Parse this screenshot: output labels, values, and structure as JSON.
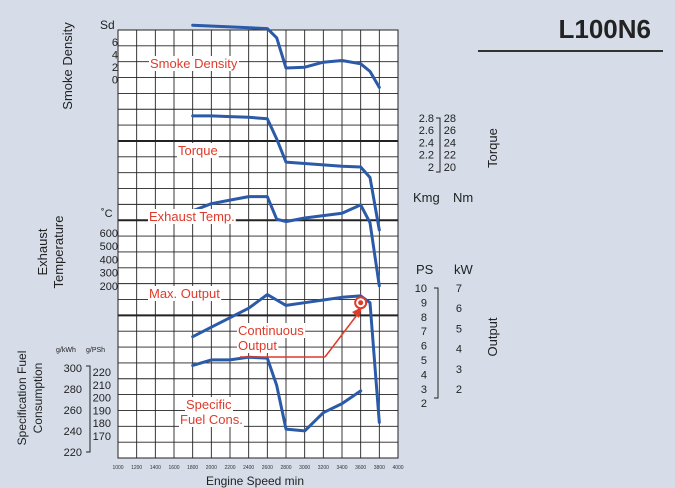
{
  "model": "L100N6",
  "xlabel": "Engine Speed min",
  "x_ticks": [
    1000,
    1200,
    1400,
    1600,
    1800,
    2000,
    2200,
    2400,
    2600,
    2800,
    3000,
    3200,
    3400,
    3600,
    3800,
    4000
  ],
  "left_axes": [
    {
      "label": "Smoke Density",
      "unit": "Sd",
      "ticks": [
        "6",
        "4",
        "2",
        "0"
      ]
    },
    {
      "label": "Exhaust Temperature",
      "unit": "˚C",
      "ticks": [
        "600",
        "500",
        "400",
        "300",
        "200"
      ]
    },
    {
      "label": "Specification Fuel Consumption",
      "unit_a": "g/kWh",
      "unit_b": "g/PSh",
      "ticks_a": [
        "300",
        "280",
        "260",
        "240",
        "220"
      ],
      "ticks_b": [
        "220",
        "210",
        "200",
        "190",
        "180",
        "170"
      ]
    }
  ],
  "right_axes": [
    {
      "label": "Torque",
      "unit_a": "Kmg",
      "unit_b": "Nm",
      "ticks_a": [
        "2.8",
        "2.6",
        "2.4",
        "2.2",
        "2"
      ],
      "ticks_b": [
        "28",
        "26",
        "24",
        "22",
        "20"
      ]
    },
    {
      "label": "Output",
      "unit_a": "PS",
      "unit_b": "kW",
      "ticks_a": [
        "10",
        "9",
        "8",
        "7",
        "6",
        "5",
        "4",
        "3",
        "2"
      ],
      "ticks_b": [
        "7",
        "6",
        "5",
        "4",
        "3",
        "2"
      ]
    }
  ],
  "curve_labels": {
    "smoke": "Smoke Density",
    "torque": "Torque",
    "exhaust": "Exhaust Temp.",
    "output": "Max. Output",
    "continuous": "Continuous Output",
    "fuel": "Specific Fuel Cons."
  },
  "colors": {
    "curve": "#2a5aa8",
    "label": "#e03a2a",
    "grid": "#222222",
    "background": "#d6dde9"
  },
  "chart_data": {
    "type": "line",
    "title": "L100N6",
    "xlabel": "Engine Speed min",
    "xlim": [
      1000,
      4000
    ],
    "grid": true,
    "series": [
      {
        "name": "Smoke Density",
        "unit": "Sd",
        "x": [
          1800,
          2200,
          2600,
          2700,
          2800,
          3000,
          3200,
          3400,
          3600,
          3700,
          3800
        ],
        "y": [
          7.0,
          6.8,
          6.6,
          5.5,
          1.9,
          2.0,
          2.6,
          2.8,
          2.4,
          1.5,
          -0.4
        ]
      },
      {
        "name": "Torque",
        "unit": "Nm",
        "x": [
          1800,
          2000,
          2200,
          2400,
          2600,
          2700,
          2800,
          3000,
          3200,
          3400,
          3600,
          3700,
          3800
        ],
        "y": [
          28.3,
          28.3,
          28.2,
          28.1,
          27.9,
          25.0,
          21.7,
          21.5,
          21.3,
          21.1,
          21.0,
          19.5,
          12.0
        ]
      },
      {
        "name": "Exhaust Temp.",
        "unit": "˚C",
        "x": [
          1800,
          2000,
          2200,
          2400,
          2600,
          2700,
          2800,
          3000,
          3200,
          3400,
          3600,
          3700,
          3800
        ],
        "y": [
          520,
          550,
          565,
          580,
          580,
          485,
          475,
          490,
          500,
          510,
          545,
          470,
          205
        ]
      },
      {
        "name": "Max. Output",
        "unit": "PS",
        "x": [
          1800,
          2000,
          2200,
          2400,
          2600,
          2700,
          2800,
          3000,
          3200,
          3400,
          3600,
          3700,
          3800
        ],
        "y": [
          6.8,
          7.5,
          8.2,
          8.9,
          9.9,
          9.5,
          9.1,
          9.3,
          9.5,
          9.7,
          9.8,
          9.3,
          0.5
        ]
      },
      {
        "name": "Continuous Output",
        "unit": "PS",
        "x": [
          3600
        ],
        "y": [
          9.3
        ]
      },
      {
        "name": "Specific Fuel Cons.",
        "unit": "g/PSh",
        "x": [
          1800,
          2000,
          2200,
          2400,
          2600,
          2700,
          2800,
          3000,
          3200,
          3400,
          3600
        ],
        "y": [
          211,
          214,
          214,
          215.5,
          215,
          200,
          176,
          175,
          185,
          190,
          197
        ]
      }
    ]
  }
}
